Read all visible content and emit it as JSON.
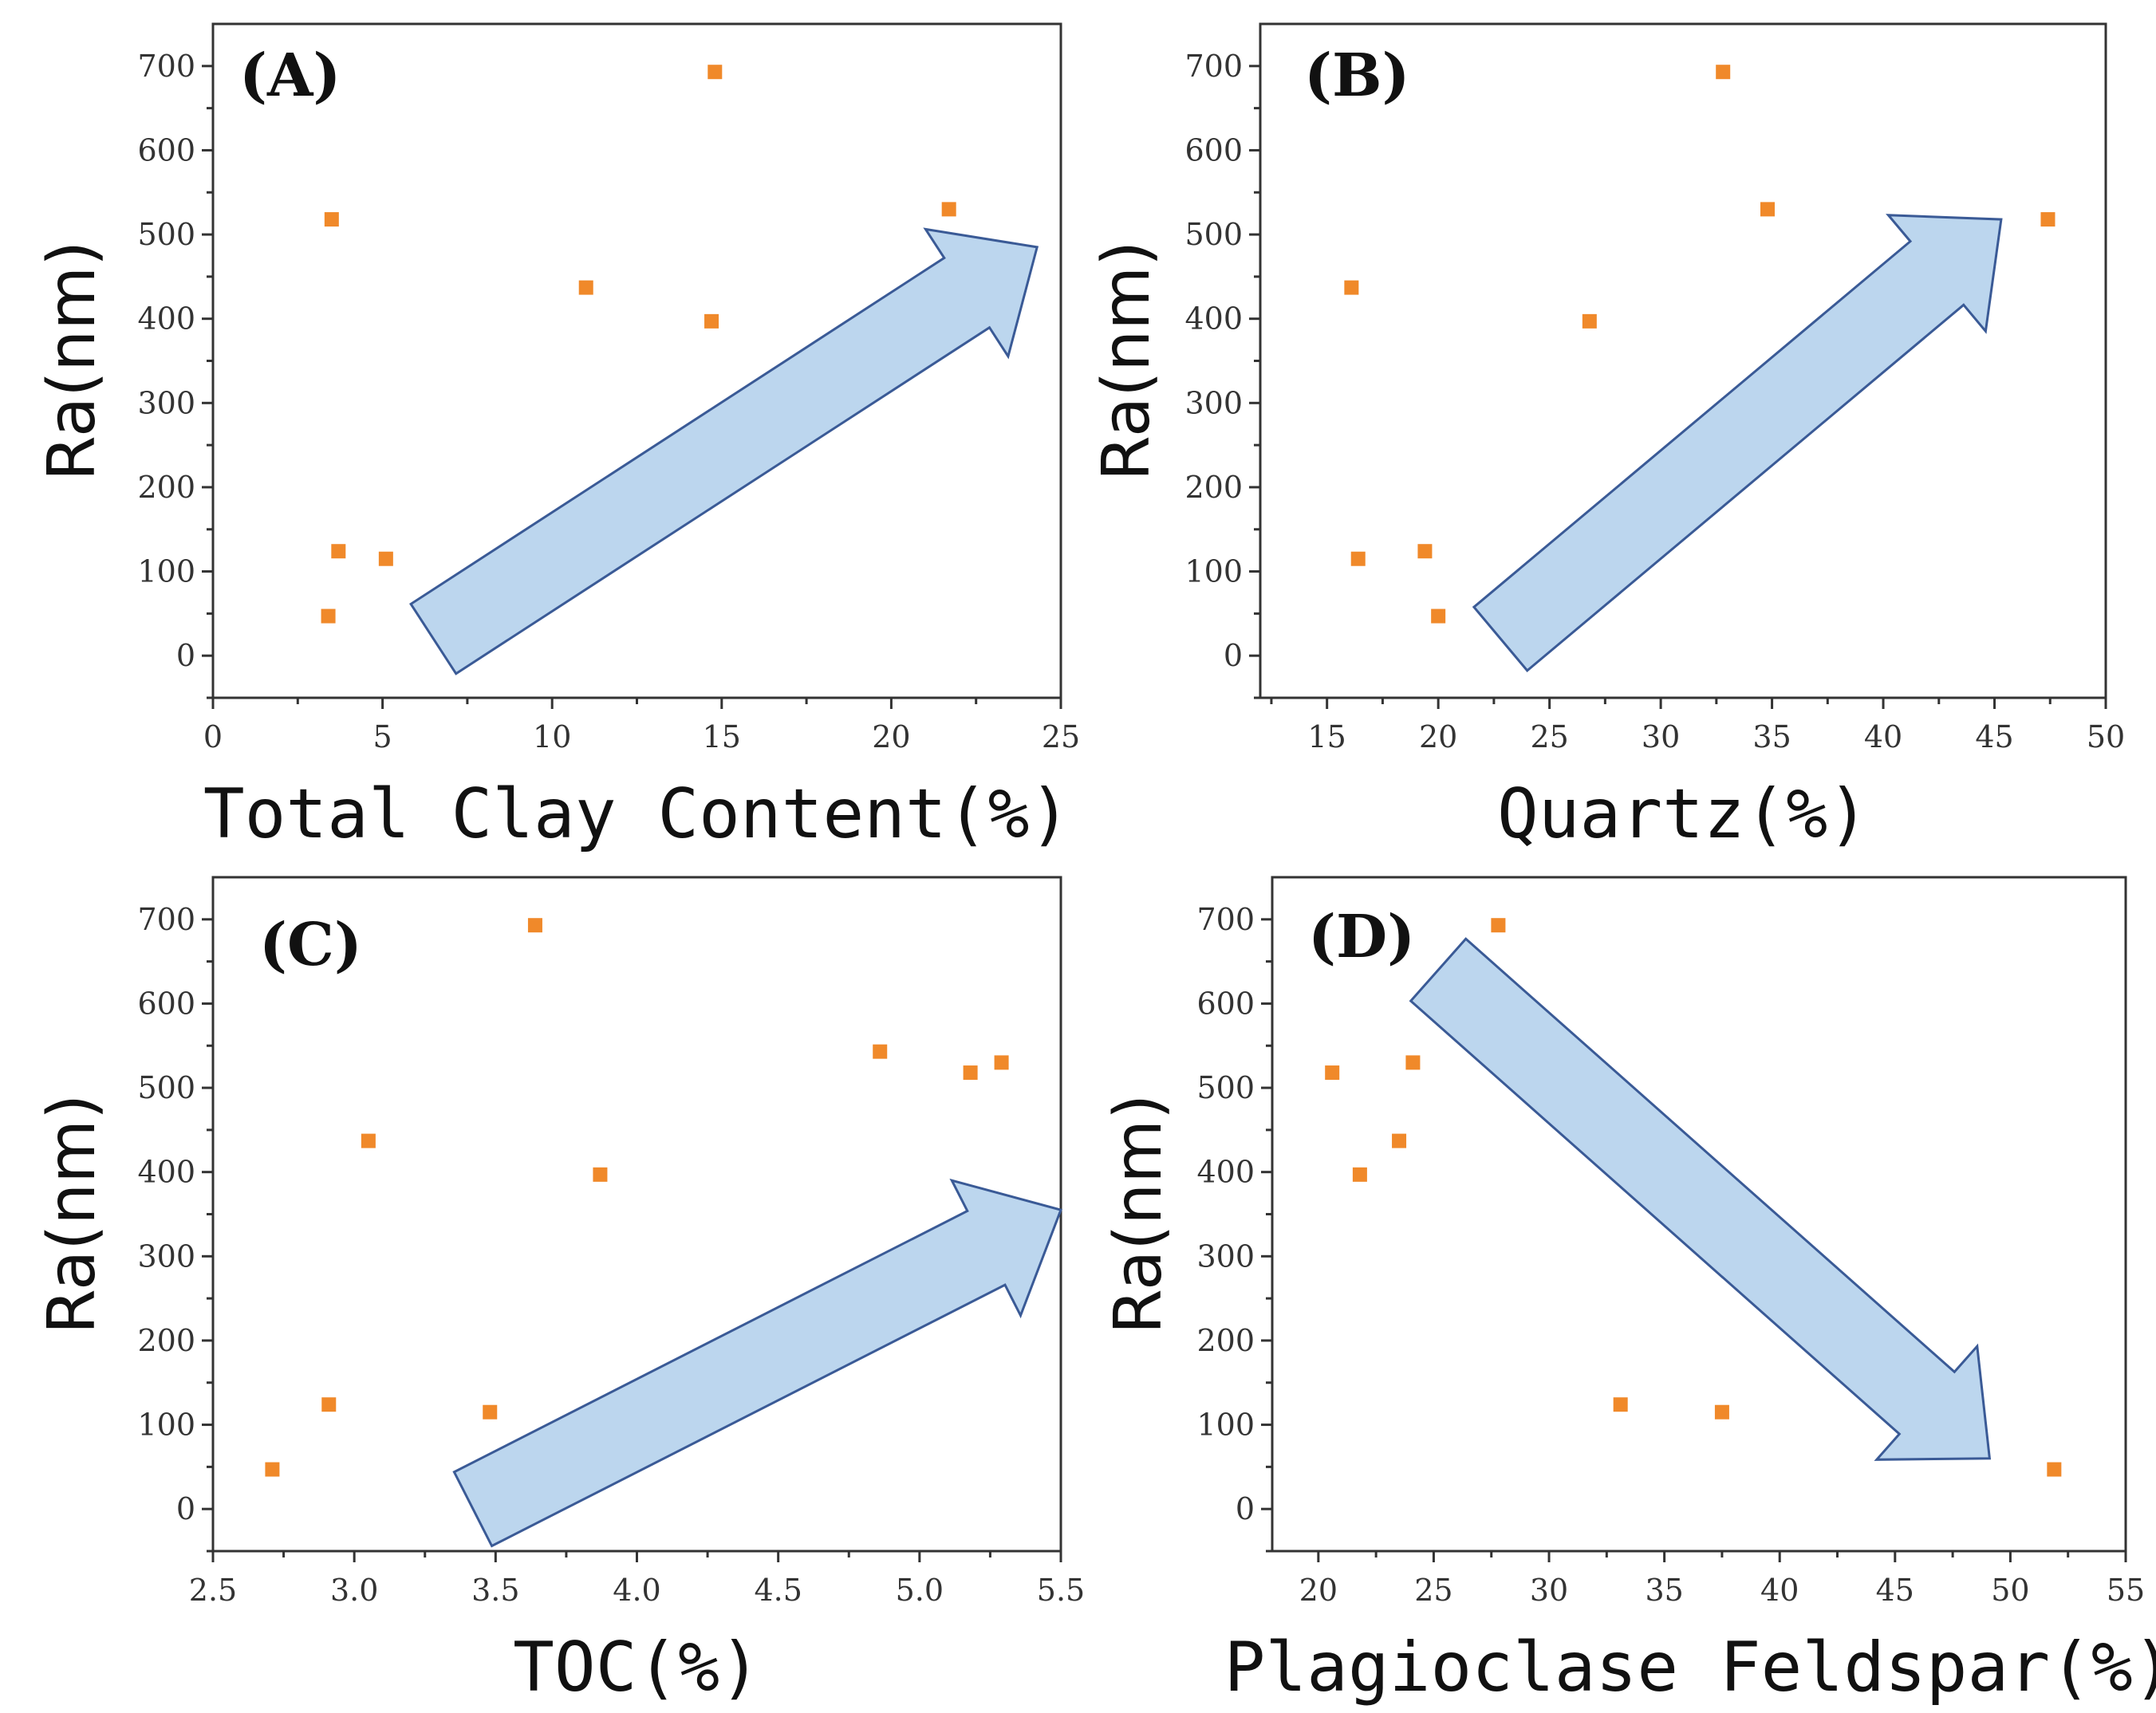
{
  "chart_data": [
    {
      "type": "scatter",
      "id": "A",
      "panel_label": "(A)",
      "xlabel": "Total Clay Content(%)",
      "ylabel": "Ra(nm)",
      "xlim": [
        0,
        25
      ],
      "ylim": [
        -50,
        750
      ],
      "xticks": [
        0,
        5,
        10,
        15,
        20,
        25
      ],
      "xtick_labels": [
        "0",
        "5",
        "10",
        "15",
        "20",
        "25"
      ],
      "yticks": [
        0,
        100,
        200,
        300,
        400,
        500,
        600,
        700
      ],
      "ytick_labels": [
        "0",
        "100",
        "200",
        "300",
        "400",
        "500",
        "600",
        "700"
      ],
      "points": [
        {
          "x": 3.4,
          "y": 47
        },
        {
          "x": 3.5,
          "y": 518
        },
        {
          "x": 3.7,
          "y": 124
        },
        {
          "x": 5.1,
          "y": 115
        },
        {
          "x": 11.0,
          "y": 437
        },
        {
          "x": 14.7,
          "y": 397
        },
        {
          "x": 14.8,
          "y": 693
        },
        {
          "x": 21.7,
          "y": 530
        }
      ],
      "trend": "increasing",
      "trend_arrow": {
        "from": [
          6.5,
          20
        ],
        "to": [
          24.3,
          485
        ]
      }
    },
    {
      "type": "scatter",
      "id": "B",
      "panel_label": "(B)",
      "xlabel": "Quartz(%)",
      "ylabel": "Ra(nm)",
      "xlim": [
        12,
        50
      ],
      "ylim": [
        -50,
        750
      ],
      "xticks": [
        15,
        20,
        25,
        30,
        35,
        40,
        45,
        50
      ],
      "xtick_labels": [
        "15",
        "20",
        "25",
        "30",
        "35",
        "40",
        "45",
        "50"
      ],
      "yticks": [
        0,
        100,
        200,
        300,
        400,
        500,
        600,
        700
      ],
      "ytick_labels": [
        "0",
        "100",
        "200",
        "300",
        "400",
        "500",
        "600",
        "700"
      ],
      "points": [
        {
          "x": 16.1,
          "y": 437
        },
        {
          "x": 16.4,
          "y": 115
        },
        {
          "x": 19.4,
          "y": 124
        },
        {
          "x": 20.0,
          "y": 47
        },
        {
          "x": 26.8,
          "y": 397
        },
        {
          "x": 32.8,
          "y": 693
        },
        {
          "x": 34.8,
          "y": 530
        },
        {
          "x": 47.4,
          "y": 518
        }
      ],
      "trend": "increasing",
      "trend_arrow": {
        "from": [
          22.8,
          20
        ],
        "to": [
          45.3,
          518
        ]
      }
    },
    {
      "type": "scatter",
      "id": "C",
      "panel_label": "(C)",
      "xlabel": "TOC(%)",
      "ylabel": "Ra(nm)",
      "xlim": [
        2.5,
        5.5
      ],
      "ylim": [
        -50,
        750
      ],
      "xticks": [
        2.5,
        3.0,
        3.5,
        4.0,
        4.5,
        5.0,
        5.5
      ],
      "xtick_labels": [
        "2.5",
        "3.0",
        "3.5",
        "4.0",
        "4.5",
        "5.0",
        "5.5"
      ],
      "yticks": [
        0,
        100,
        200,
        300,
        400,
        500,
        600,
        700
      ],
      "ytick_labels": [
        "0",
        "100",
        "200",
        "300",
        "400",
        "500",
        "600",
        "700"
      ],
      "points": [
        {
          "x": 2.71,
          "y": 47
        },
        {
          "x": 2.91,
          "y": 124
        },
        {
          "x": 3.05,
          "y": 437
        },
        {
          "x": 3.48,
          "y": 115
        },
        {
          "x": 3.64,
          "y": 693
        },
        {
          "x": 3.87,
          "y": 397
        },
        {
          "x": 4.86,
          "y": 543
        },
        {
          "x": 5.18,
          "y": 518
        },
        {
          "x": 5.29,
          "y": 530
        }
      ],
      "trend": "increasing",
      "trend_arrow": {
        "from": [
          3.42,
          0
        ],
        "to": [
          5.5,
          355
        ]
      }
    },
    {
      "type": "scatter",
      "id": "D",
      "panel_label": "(D)",
      "xlabel": "Plagioclase Feldspar(%)",
      "ylabel": "Ra(nm)",
      "xlim": [
        18,
        55
      ],
      "ylim": [
        -50,
        750
      ],
      "xticks": [
        20,
        25,
        30,
        35,
        40,
        45,
        50,
        55
      ],
      "xtick_labels": [
        "20",
        "25",
        "30",
        "35",
        "40",
        "45",
        "50",
        "55"
      ],
      "yticks": [
        0,
        100,
        200,
        300,
        400,
        500,
        600,
        700
      ],
      "ytick_labels": [
        "0",
        "100",
        "200",
        "300",
        "400",
        "500",
        "600",
        "700"
      ],
      "points": [
        {
          "x": 20.6,
          "y": 518
        },
        {
          "x": 21.8,
          "y": 397
        },
        {
          "x": 23.5,
          "y": 437
        },
        {
          "x": 24.1,
          "y": 530
        },
        {
          "x": 27.8,
          "y": 693
        },
        {
          "x": 33.1,
          "y": 124
        },
        {
          "x": 37.5,
          "y": 115
        },
        {
          "x": 51.9,
          "y": 47
        }
      ],
      "trend": "decreasing",
      "trend_arrow": {
        "from": [
          25.2,
          640
        ],
        "to": [
          49.1,
          60
        ]
      }
    }
  ],
  "colors": {
    "marker": "#f0892a",
    "arrow_fill": "#bcd6ee",
    "arrow_stroke": "#3a5a96",
    "axis": "#333333"
  }
}
